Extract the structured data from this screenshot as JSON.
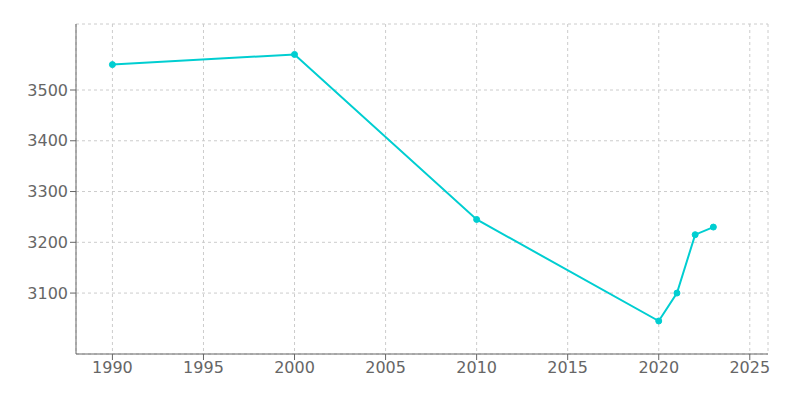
{
  "chart_data": {
    "type": "line",
    "x": [
      1990,
      2000,
      2010,
      2020,
      2021,
      2022,
      2023
    ],
    "values": [
      3550,
      3570,
      3245,
      3045,
      3100,
      3215,
      3230
    ],
    "color": "#00CED1",
    "marker": "o",
    "xlim": [
      1988,
      2026
    ],
    "ylim": [
      2980,
      3630
    ],
    "xticks": [
      1990,
      1995,
      2000,
      2005,
      2010,
      2015,
      2020,
      2025
    ],
    "yticks": [
      3100,
      3200,
      3300,
      3400,
      3500
    ],
    "grid": true
  }
}
